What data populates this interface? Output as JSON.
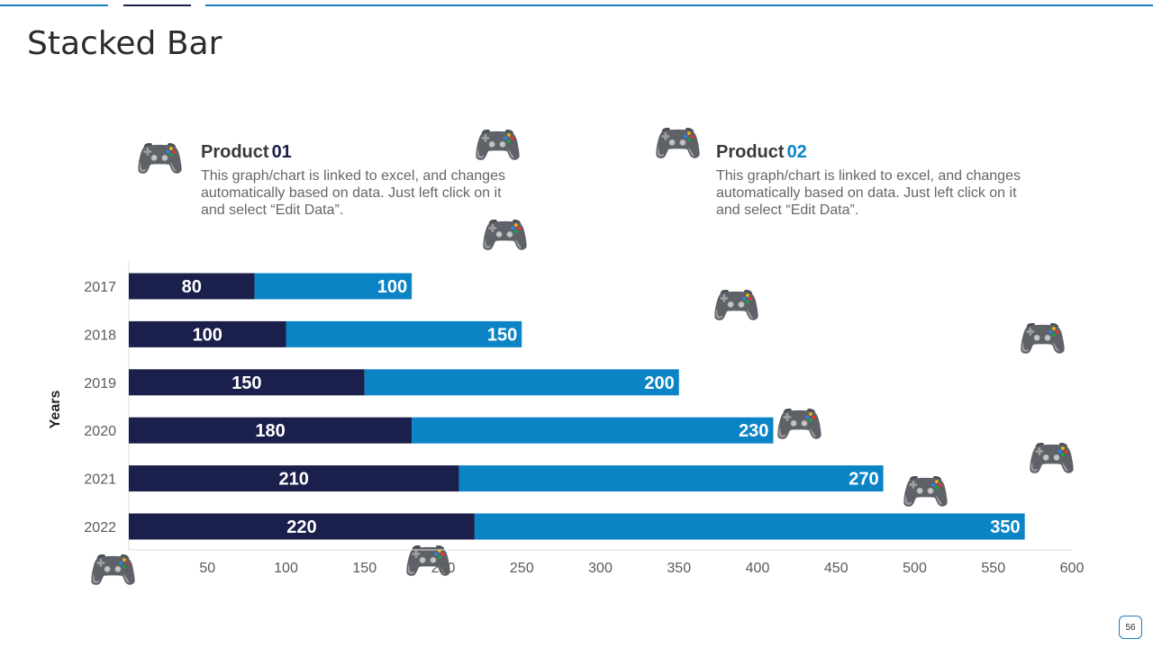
{
  "slide": {
    "title": "Stacked Bar",
    "page_number": "56"
  },
  "legend": [
    {
      "label": "Product",
      "number": "01",
      "color": "#1b1f4b",
      "description": "This graph/chart is linked to excel, and changes automatically based on data. Just left click on it and select “Edit Data”."
    },
    {
      "label": "Product",
      "number": "02",
      "color": "#0b84c6",
      "description": "This graph/chart is linked to excel, and changes automatically based on data. Just left click on it and select “Edit Data”."
    }
  ],
  "colors": {
    "accent": "#1a7dbf",
    "series1": "#1b1f4b",
    "series2": "#0b84c6"
  },
  "chart_data": {
    "type": "bar",
    "orientation": "horizontal",
    "stacked": true,
    "categories": [
      "2017",
      "2018",
      "2019",
      "2020",
      "2021",
      "2022"
    ],
    "series": [
      {
        "values": [
          80,
          100,
          150,
          180,
          210,
          220
        ],
        "color": "#1b1f4b"
      },
      {
        "values": [
          100,
          150,
          200,
          230,
          270,
          350
        ],
        "color": "#0b84c6"
      }
    ],
    "xlim": [
      0,
      600
    ],
    "xticks": [
      0,
      50,
      100,
      150,
      200,
      250,
      300,
      350,
      400,
      450,
      500,
      550,
      600
    ],
    "ylabel": "Years",
    "xlabel": "",
    "data_labels": true,
    "grid": false
  }
}
